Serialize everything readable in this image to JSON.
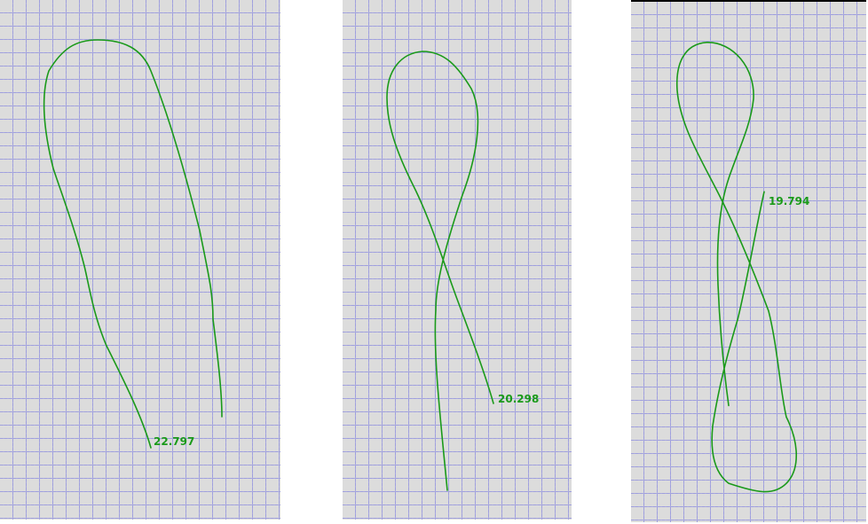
{
  "panels": [
    {
      "id": "panel-1",
      "value_label": "22.797"
    },
    {
      "id": "panel-2",
      "value_label": "20.298"
    },
    {
      "id": "panel-3",
      "value_label": "19.794"
    }
  ],
  "colors": {
    "curve": "#1a9a1a",
    "grid": "#6a6adf",
    "background": "#dcdcdc"
  }
}
